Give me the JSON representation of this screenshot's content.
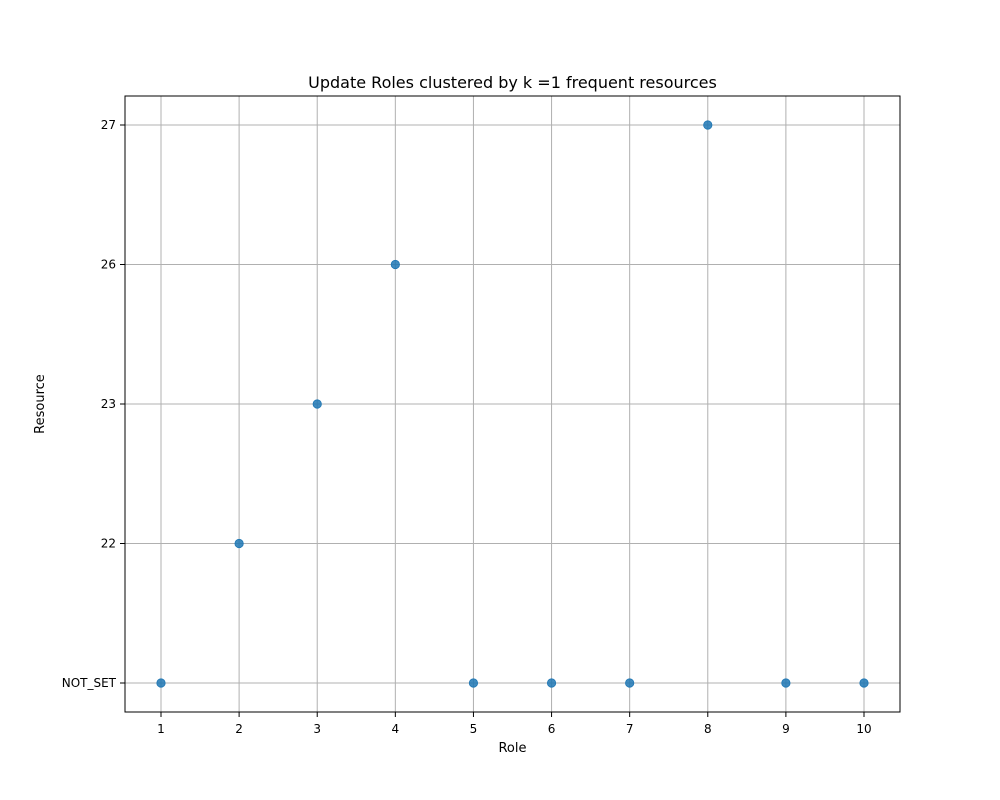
{
  "chart_data": {
    "type": "scatter",
    "title": "Update Roles clustered by k =1 frequent resources",
    "xlabel": "Role",
    "ylabel": "Resource",
    "x_ticks": [
      "1",
      "2",
      "3",
      "4",
      "5",
      "6",
      "7",
      "8",
      "9",
      "10"
    ],
    "y_categories": [
      "NOT_SET",
      "22",
      "23",
      "26",
      "27"
    ],
    "grid": true,
    "points": [
      {
        "x": 1,
        "y": "NOT_SET"
      },
      {
        "x": 2,
        "y": "22"
      },
      {
        "x": 3,
        "y": "23"
      },
      {
        "x": 4,
        "y": "26"
      },
      {
        "x": 5,
        "y": "NOT_SET"
      },
      {
        "x": 6,
        "y": "NOT_SET"
      },
      {
        "x": 7,
        "y": "NOT_SET"
      },
      {
        "x": 8,
        "y": "27"
      },
      {
        "x": 9,
        "y": "NOT_SET"
      },
      {
        "x": 10,
        "y": "NOT_SET"
      }
    ],
    "marker_color": "#1f77b4"
  }
}
